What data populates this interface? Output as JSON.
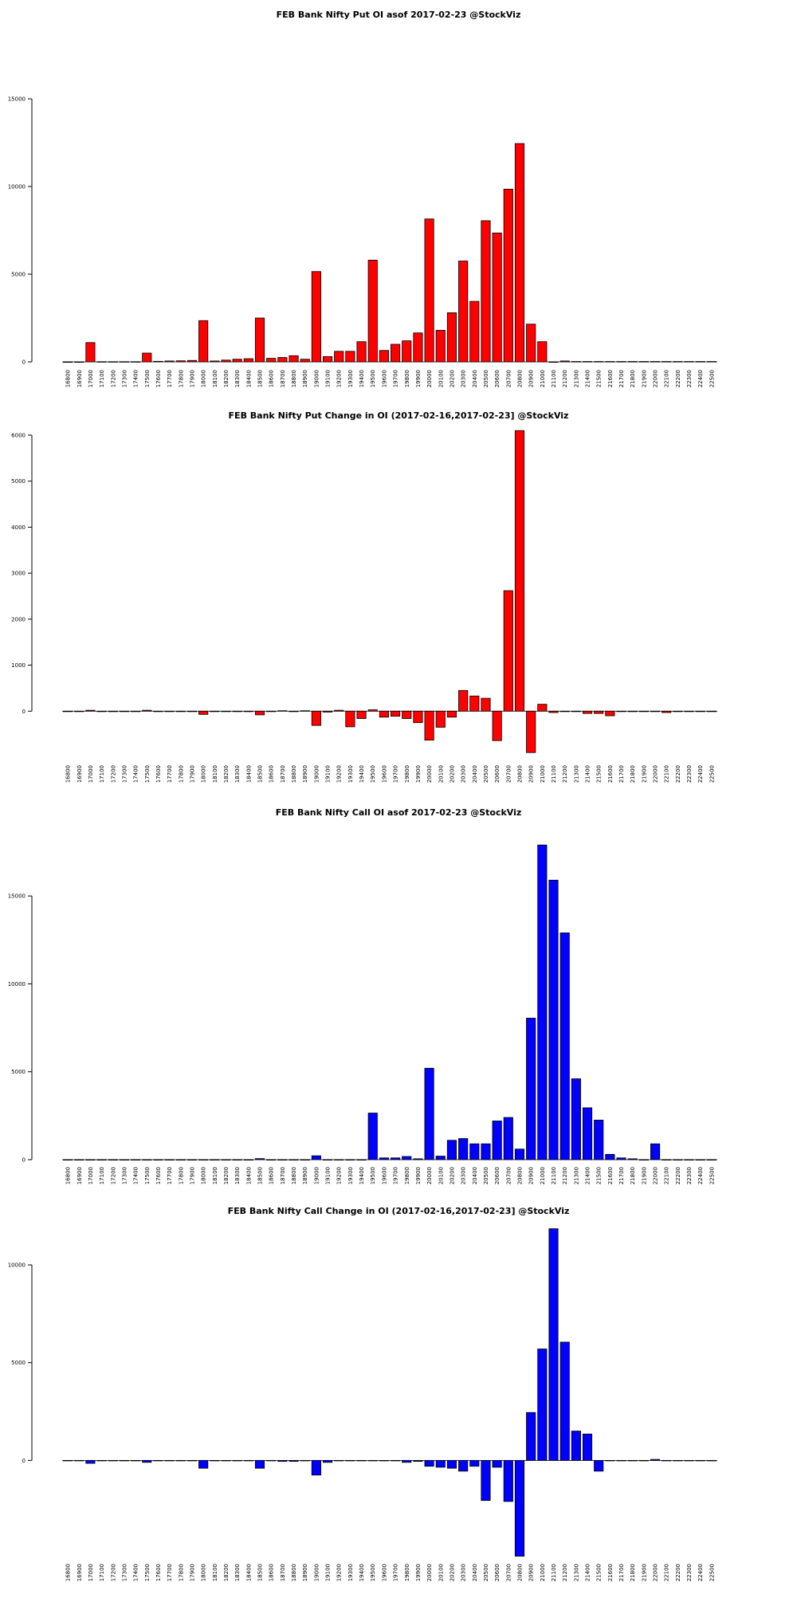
{
  "chart_data": [
    {
      "type": "bar",
      "title": "FEB Bank Nifty Put OI asof 2017-02-23 @StockViz",
      "color": "#ff0000",
      "ylim": [
        0,
        15000
      ],
      "yticks": [
        0,
        5000,
        10000,
        15000
      ],
      "categories": [
        "16800",
        "16900",
        "17000",
        "17100",
        "17200",
        "17300",
        "17400",
        "17500",
        "17600",
        "17700",
        "17800",
        "17900",
        "18000",
        "18100",
        "18200",
        "18300",
        "18400",
        "18500",
        "18600",
        "18700",
        "18800",
        "18900",
        "19000",
        "19100",
        "19200",
        "19300",
        "19400",
        "19500",
        "19600",
        "19700",
        "19800",
        "19900",
        "20000",
        "20100",
        "20200",
        "20300",
        "20400",
        "20500",
        "20600",
        "20700",
        "20800",
        "20900",
        "21000",
        "21100",
        "21200",
        "21300",
        "21400",
        "21500",
        "21600",
        "21700",
        "21800",
        "21900",
        "22000",
        "22100",
        "22200",
        "22300",
        "22400",
        "22500"
      ],
      "values": [
        0,
        0,
        1100,
        10,
        10,
        10,
        10,
        500,
        30,
        50,
        60,
        80,
        2350,
        50,
        100,
        150,
        180,
        2500,
        200,
        250,
        350,
        150,
        5150,
        300,
        600,
        600,
        1150,
        5800,
        650,
        1000,
        1200,
        1650,
        8150,
        1800,
        2800,
        5750,
        3450,
        8050,
        7350,
        9850,
        12450,
        2150,
        1150,
        0,
        50,
        20,
        20,
        20,
        20,
        20,
        20,
        20,
        20,
        20,
        20,
        20,
        20,
        20
      ]
    },
    {
      "type": "bar",
      "title": "FEB Bank Nifty Put Change in OI (2017-02-16,2017-02-23] @StockViz",
      "color": "#ff0000",
      "ylim": [
        -1000,
        6000
      ],
      "yticks": [
        0,
        1000,
        2000,
        3000,
        4000,
        5000,
        6000
      ],
      "categories": [
        "16800",
        "16900",
        "17000",
        "17100",
        "17200",
        "17300",
        "17400",
        "17500",
        "17600",
        "17700",
        "17800",
        "17900",
        "18000",
        "18100",
        "18200",
        "18300",
        "18400",
        "18500",
        "18600",
        "18700",
        "18800",
        "18900",
        "19000",
        "19100",
        "19200",
        "19300",
        "19400",
        "19500",
        "19600",
        "19700",
        "19800",
        "19900",
        "20000",
        "20100",
        "20200",
        "20300",
        "20400",
        "20500",
        "20600",
        "20700",
        "20800",
        "20900",
        "21000",
        "21100",
        "21200",
        "21300",
        "21400",
        "21500",
        "21600",
        "21700",
        "21800",
        "21900",
        "22000",
        "22100",
        "22200",
        "22300",
        "22400",
        "22500"
      ],
      "values": [
        0,
        0,
        20,
        0,
        0,
        0,
        0,
        20,
        0,
        0,
        0,
        0,
        -70,
        0,
        0,
        0,
        0,
        -80,
        0,
        10,
        0,
        10,
        -310,
        -20,
        20,
        -340,
        -160,
        30,
        -130,
        -110,
        -160,
        -250,
        -630,
        -350,
        -130,
        450,
        330,
        280,
        -640,
        2620,
        6100,
        -900,
        150,
        -30,
        0,
        0,
        -50,
        -50,
        -100,
        0,
        0,
        0,
        0,
        -30,
        0,
        0,
        0,
        0
      ]
    },
    {
      "type": "bar",
      "title": "FEB Bank Nifty Call OI asof 2017-02-23 @StockViz",
      "color": "#0000ff",
      "ylim": [
        0,
        18000
      ],
      "yticks": [
        0,
        5000,
        10000,
        15000
      ],
      "categories": [
        "16800",
        "16900",
        "17000",
        "17100",
        "17200",
        "17300",
        "17400",
        "17500",
        "17600",
        "17700",
        "17800",
        "17900",
        "18000",
        "18100",
        "18200",
        "18300",
        "18400",
        "18500",
        "18600",
        "18700",
        "18800",
        "18900",
        "19000",
        "19100",
        "19200",
        "19300",
        "19400",
        "19500",
        "19600",
        "19700",
        "19800",
        "19900",
        "20000",
        "20100",
        "20200",
        "20300",
        "20400",
        "20500",
        "20600",
        "20700",
        "20800",
        "20900",
        "21000",
        "21100",
        "21200",
        "21300",
        "21400",
        "21500",
        "21600",
        "21700",
        "21800",
        "21900",
        "22000",
        "22100",
        "22200",
        "22300",
        "22400",
        "22500"
      ],
      "values": [
        0,
        0,
        0,
        0,
        0,
        0,
        0,
        0,
        0,
        0,
        0,
        0,
        0,
        0,
        0,
        0,
        0,
        60,
        0,
        0,
        0,
        0,
        220,
        0,
        0,
        0,
        0,
        2650,
        100,
        100,
        180,
        50,
        5200,
        200,
        1100,
        1200,
        900,
        900,
        2200,
        2400,
        600,
        8050,
        17900,
        15900,
        12900,
        4600,
        2950,
        2250,
        300,
        100,
        50,
        0,
        900,
        0,
        0,
        0,
        0,
        0
      ]
    },
    {
      "type": "bar",
      "title": "FEB Bank Nifty Call Change in OI (2017-02-16,2017-02-23] @StockViz",
      "color": "#0000ff",
      "ylim": [
        -5000,
        12000
      ],
      "yticks": [
        0,
        5000,
        10000
      ],
      "categories": [
        "16800",
        "16900",
        "17000",
        "17100",
        "17200",
        "17300",
        "17400",
        "17500",
        "17600",
        "17700",
        "17800",
        "17900",
        "18000",
        "18100",
        "18200",
        "18300",
        "18400",
        "18500",
        "18600",
        "18700",
        "18800",
        "18900",
        "19000",
        "19100",
        "19200",
        "19300",
        "19400",
        "19500",
        "19600",
        "19700",
        "19800",
        "19900",
        "20000",
        "20100",
        "20200",
        "20300",
        "20400",
        "20500",
        "20600",
        "20700",
        "20800",
        "20900",
        "21000",
        "21100",
        "21200",
        "21300",
        "21400",
        "21500",
        "21600",
        "21700",
        "21800",
        "21900",
        "22000",
        "22100",
        "22200",
        "22300",
        "22400",
        "22500"
      ],
      "values": [
        0,
        0,
        -150,
        0,
        0,
        0,
        0,
        -100,
        0,
        0,
        0,
        0,
        -400,
        0,
        0,
        0,
        0,
        -400,
        0,
        -50,
        -50,
        0,
        -750,
        -100,
        0,
        0,
        0,
        0,
        0,
        0,
        -100,
        -50,
        -300,
        -350,
        -400,
        -550,
        -300,
        -2050,
        -350,
        -2100,
        -4900,
        2450,
        5700,
        11850,
        6050,
        1500,
        1350,
        -550,
        0,
        0,
        0,
        0,
        50,
        0,
        0,
        0,
        0,
        0
      ]
    }
  ]
}
